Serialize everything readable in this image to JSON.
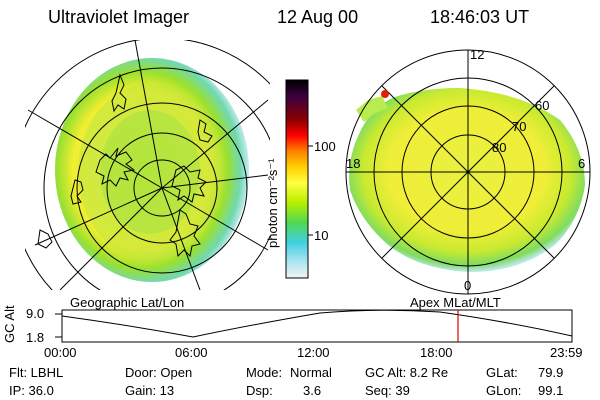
{
  "header": {
    "instrument": "Ultraviolet Imager",
    "date": "12 Aug 00",
    "time": "18:46:03 UT"
  },
  "colorbar": {
    "unit_label": "photon cm⁻²s⁻¹",
    "ticks": [
      "100",
      "10"
    ],
    "scale": "log",
    "colors": [
      "#000000",
      "#3a0040",
      "#8b0000",
      "#ff0000",
      "#ff7f00",
      "#ffd000",
      "#ffff40",
      "#c8f000",
      "#60e000",
      "#30d0a0",
      "#40d8e0",
      "#b0e8f0",
      "#e8f0f0"
    ]
  },
  "left_panel": {
    "caption": "Geographic Lat/Lon"
  },
  "right_panel": {
    "caption": "Apex  MLat/MLT",
    "lat_labels": [
      "80",
      "70",
      "60"
    ],
    "mlt_labels": [
      "12",
      "18",
      "6",
      "0"
    ]
  },
  "timeline": {
    "ylabel": "GC Alt",
    "yticks": [
      "9.0",
      "1.8"
    ],
    "xticks": [
      "00:00",
      "06:00",
      "12:00",
      "18:00",
      "23:59"
    ],
    "marker_time": "18:46",
    "marker_color": "#e00000"
  },
  "status": {
    "filter": "Flt: LBHL",
    "ip": "IP: 36.0",
    "door": "Door: Open",
    "gain": "Gain: 13",
    "mode_label": "Mode:",
    "mode_value": "Normal",
    "dsp_label": "Dsp:",
    "dsp_value": "3.6",
    "gc_alt": "GC Alt: 8.2 Re",
    "seq": "Seq: 39",
    "glat_label": "GLat:",
    "glat_value": "79.9",
    "glon_label": "GLon:",
    "glon_value": "99.1"
  }
}
